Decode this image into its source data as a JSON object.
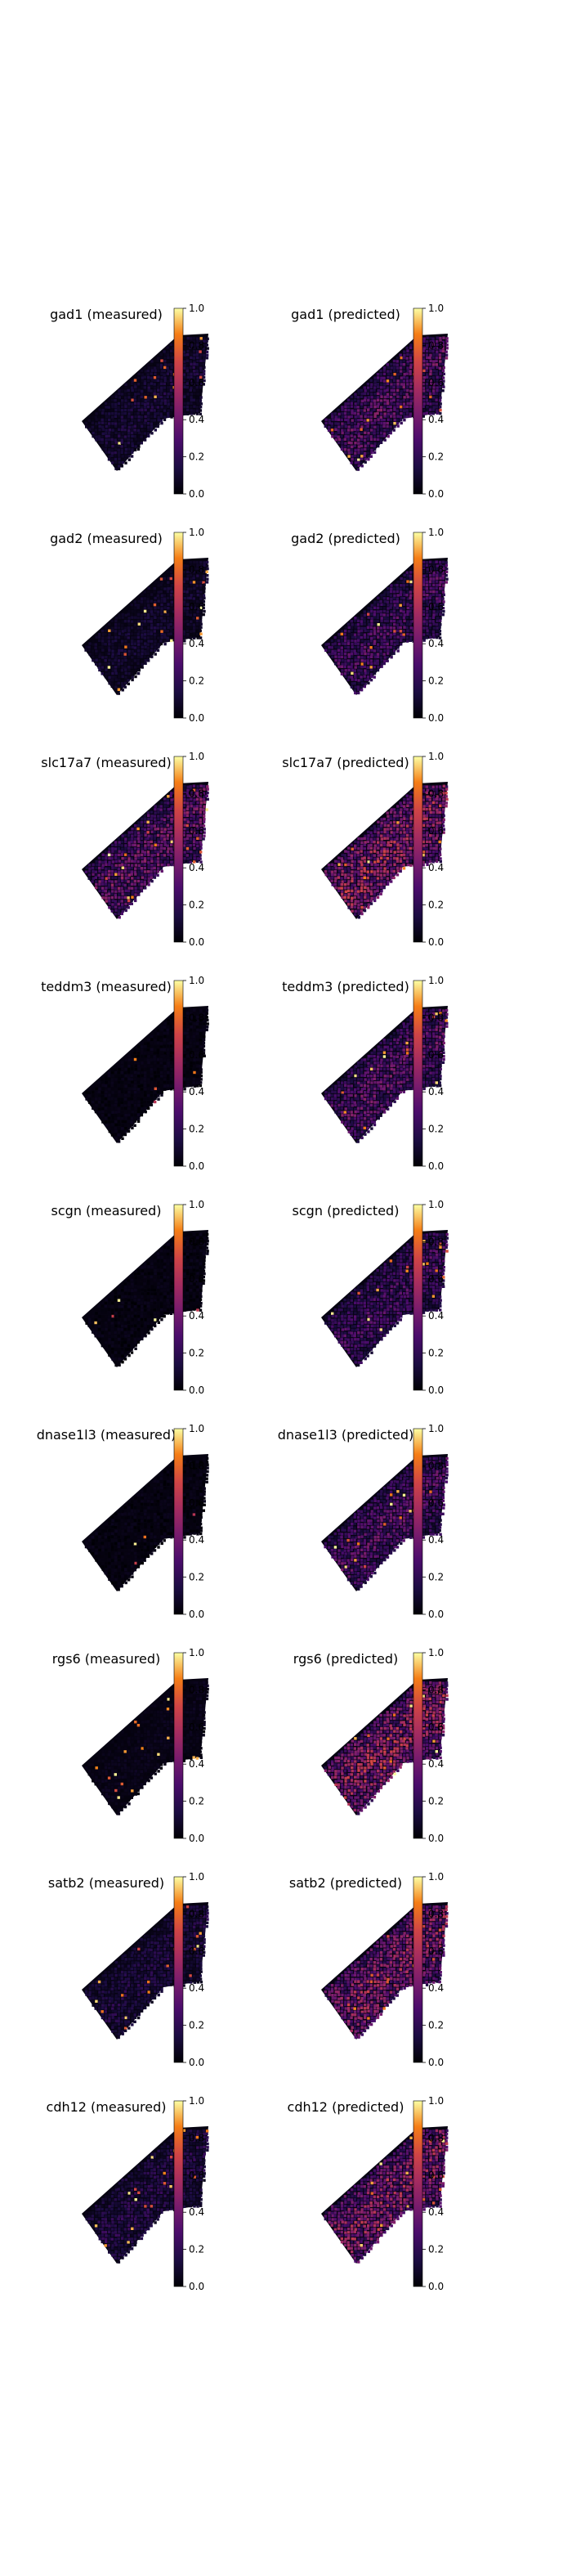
{
  "chart_data": {
    "type": "spatial-scatter",
    "colormap": "inferno",
    "colorbar": {
      "min": 0.0,
      "max": 1.0,
      "ticks": [
        "0.0",
        "0.2",
        "0.4",
        "0.6",
        "0.8",
        "1.0"
      ]
    },
    "panels": [
      {
        "gene": "gad1",
        "title": "gad1 (measured)",
        "level": 0.12
      },
      {
        "gene": "gad1",
        "title": "gad1 (predicted)",
        "level": 0.3
      },
      {
        "gene": "gad2",
        "title": "gad2 (measured)",
        "level": 0.1
      },
      {
        "gene": "gad2",
        "title": "gad2 (predicted)",
        "level": 0.26
      },
      {
        "gene": "slc17a7",
        "title": "slc17a7 (measured)",
        "level": 0.33
      },
      {
        "gene": "slc17a7",
        "title": "slc17a7 (predicted)",
        "level": 0.45
      },
      {
        "gene": "teddm3",
        "title": "teddm3 (measured)",
        "level": 0.02
      },
      {
        "gene": "teddm3",
        "title": "teddm3 (predicted)",
        "level": 0.3
      },
      {
        "gene": "scgn",
        "title": "scgn (measured)",
        "level": 0.02
      },
      {
        "gene": "scgn",
        "title": "scgn (predicted)",
        "level": 0.24
      },
      {
        "gene": "dnase1l3",
        "title": "dnase1l3 (measured)",
        "level": 0.02
      },
      {
        "gene": "dnase1l3",
        "title": "dnase1l3 (predicted)",
        "level": 0.28
      },
      {
        "gene": "rgs6",
        "title": "rgs6 (measured)",
        "level": 0.05
      },
      {
        "gene": "rgs6",
        "title": "rgs6 (predicted)",
        "level": 0.45
      },
      {
        "gene": "satb2",
        "title": "satb2 (measured)",
        "level": 0.14
      },
      {
        "gene": "satb2",
        "title": "satb2 (predicted)",
        "level": 0.42
      },
      {
        "gene": "cdh12",
        "title": "cdh12 (measured)",
        "level": 0.16
      },
      {
        "gene": "cdh12",
        "title": "cdh12 (predicted)",
        "level": 0.42
      }
    ]
  }
}
